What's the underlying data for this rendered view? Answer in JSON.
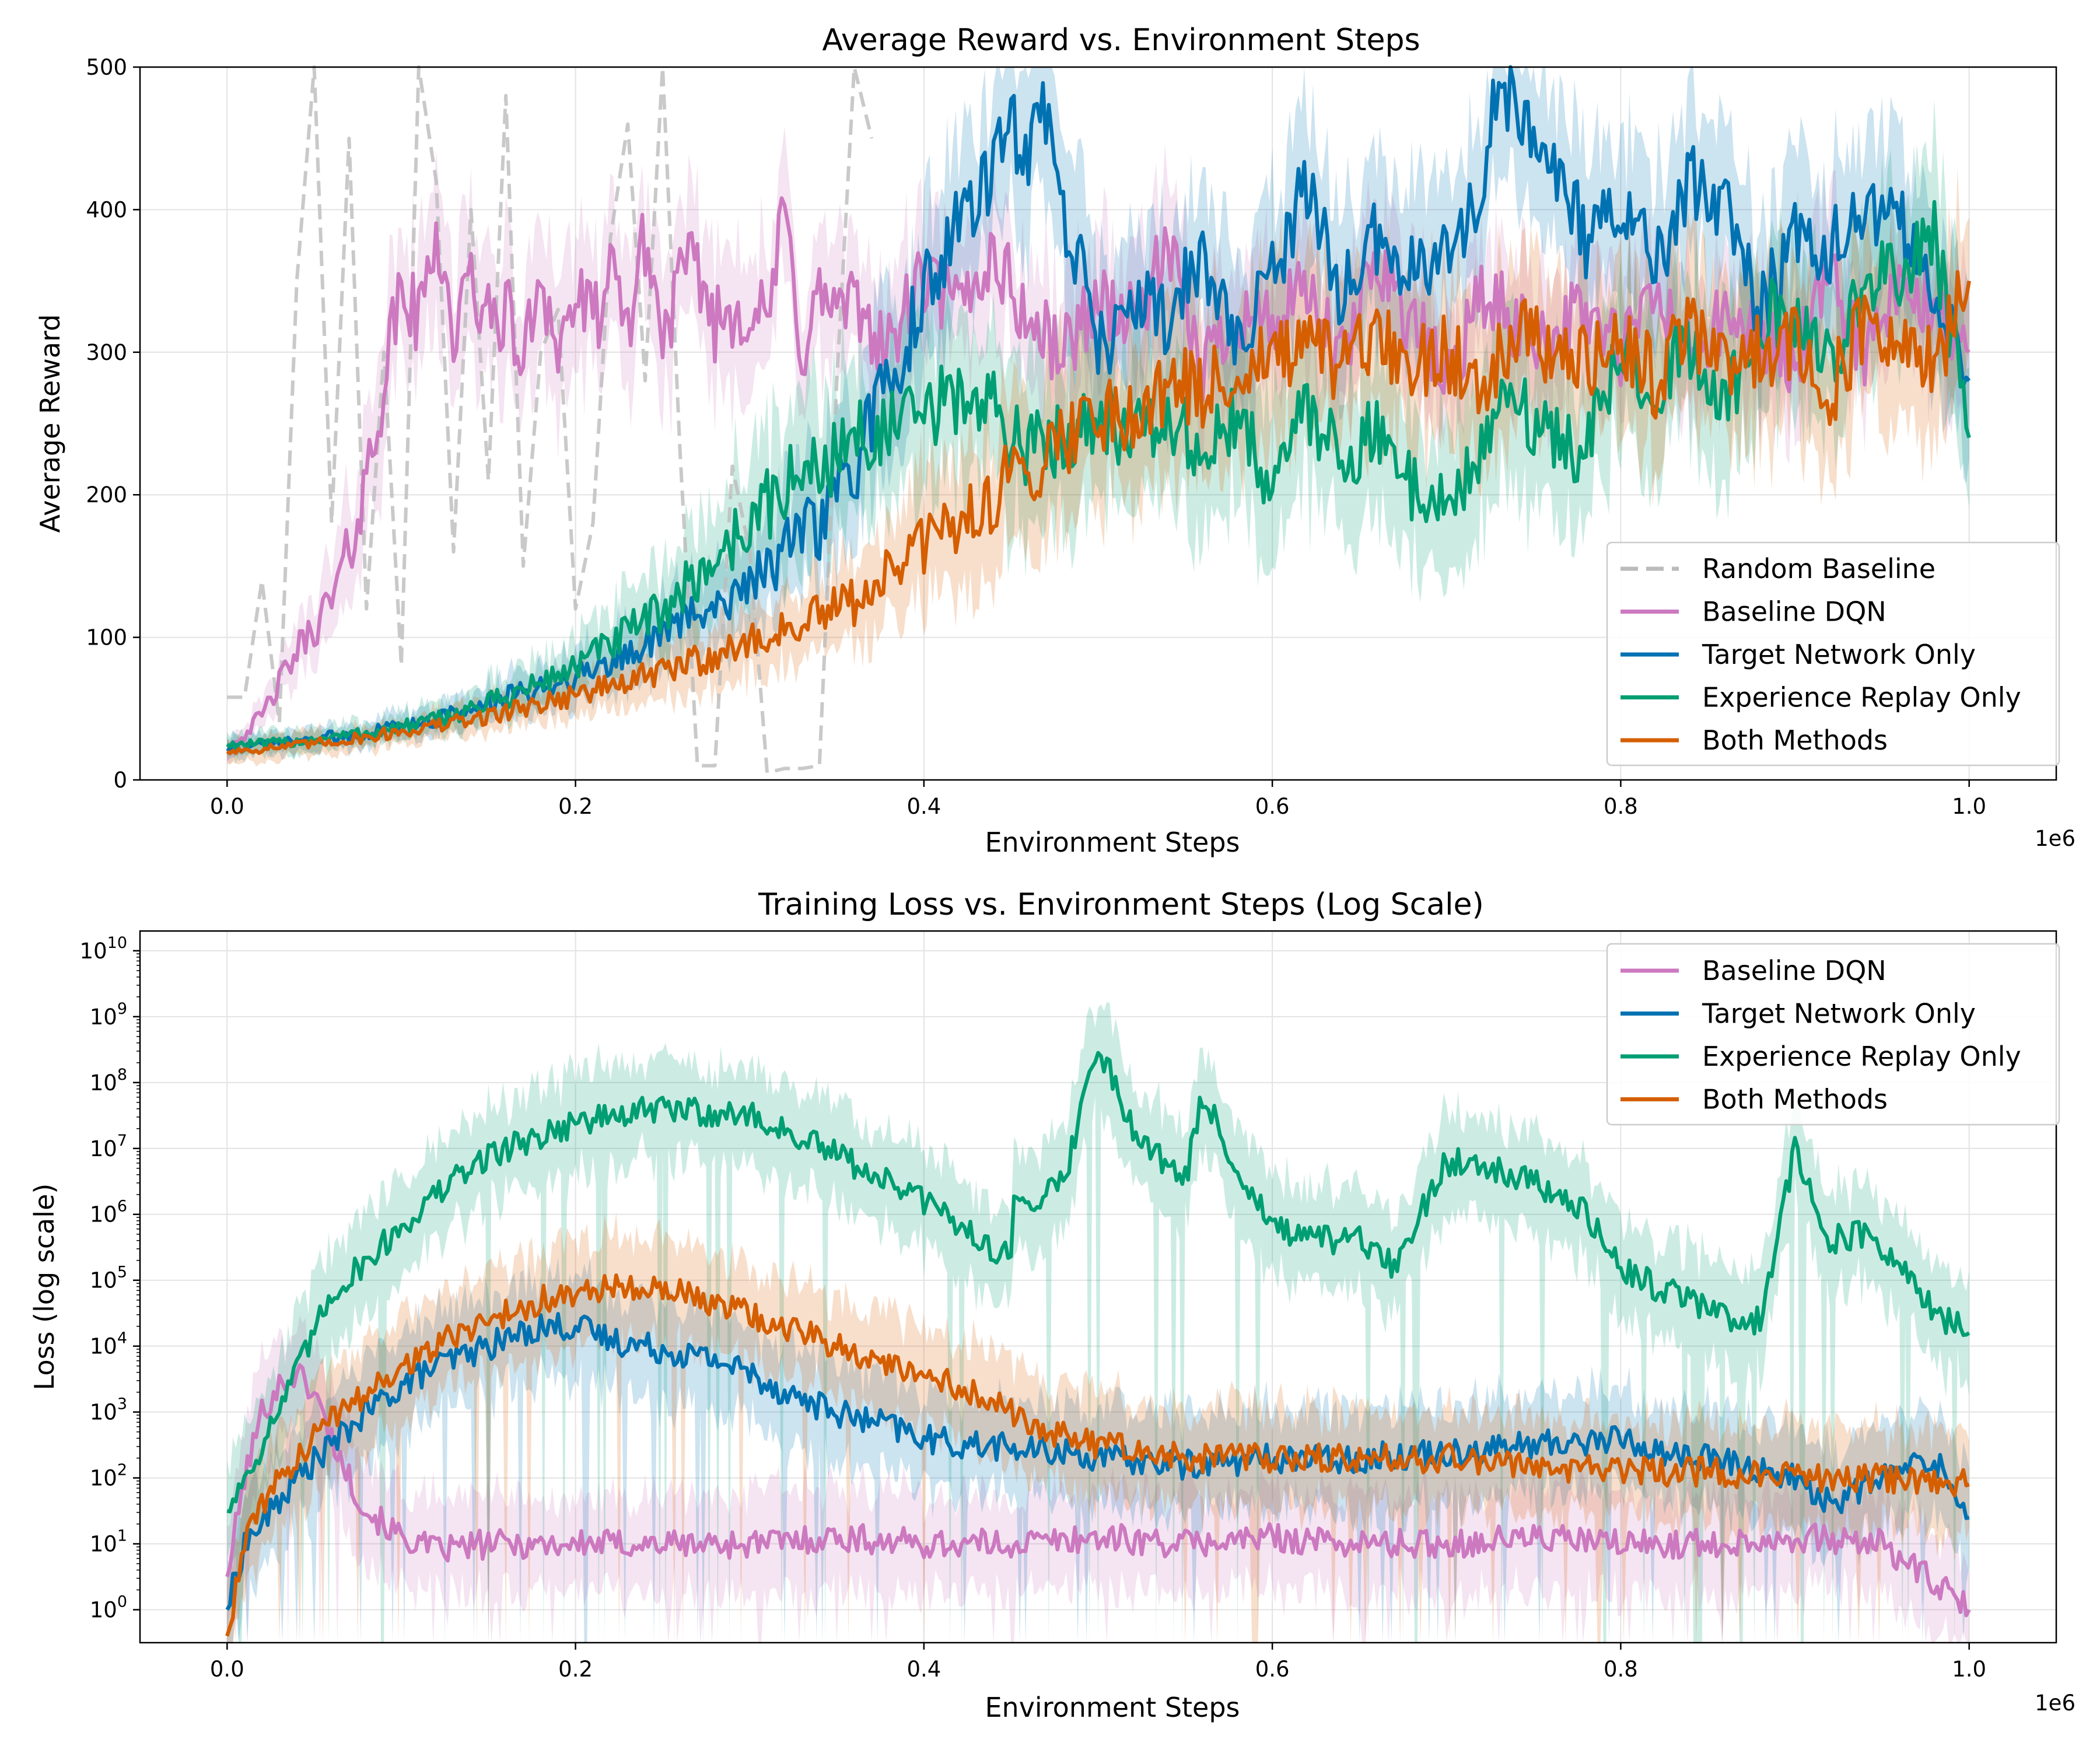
{
  "colors": {
    "random": "#bbbbbb",
    "baseline": "#cc79c0",
    "target": "#0072b2",
    "replay": "#009e73",
    "both": "#d55e00"
  },
  "chart_data": [
    {
      "type": "line",
      "title": "Average Reward vs. Environment Steps",
      "xlabel": "Environment Steps",
      "ylabel": "Average Reward",
      "x_offset_label": "1e6",
      "xlim": [
        -0.05,
        1.05
      ],
      "ylim": [
        0,
        500
      ],
      "xticks": [
        "0.0",
        "0.2",
        "0.4",
        "0.6",
        "0.8",
        "1.0"
      ],
      "xtick_values": [
        0.0,
        0.2,
        0.4,
        0.6,
        0.8,
        1.0
      ],
      "yticks": [
        "0",
        "100",
        "200",
        "300",
        "400",
        "500"
      ],
      "ytick_values": [
        0,
        100,
        200,
        300,
        400,
        500
      ],
      "grid": true,
      "legend_position": "lower-right",
      "series": [
        {
          "name": "Random Baseline",
          "color_key": "random",
          "dashed": true,
          "band": 0,
          "x": [
            0.0,
            0.01,
            0.02,
            0.03,
            0.04,
            0.05,
            0.06,
            0.07,
            0.08,
            0.09,
            0.1,
            0.11,
            0.12,
            0.13,
            0.14,
            0.15,
            0.16,
            0.17,
            0.18,
            0.19,
            0.2,
            0.21,
            0.22,
            0.23,
            0.24,
            0.25,
            0.26,
            0.27,
            0.28,
            0.29,
            0.3,
            0.31,
            0.32,
            0.33,
            0.34,
            0.35,
            0.36,
            0.37
          ],
          "y": [
            58,
            58,
            140,
            40,
            350,
            500,
            180,
            450,
            120,
            300,
            80,
            500,
            420,
            160,
            400,
            210,
            480,
            150,
            300,
            330,
            120,
            180,
            380,
            460,
            280,
            500,
            230,
            10,
            10,
            220,
            160,
            5,
            8,
            8,
            10,
            280,
            500,
            450
          ]
        },
        {
          "name": "Baseline DQN",
          "color_key": "baseline",
          "band": 45,
          "x": [
            0.0,
            0.02,
            0.04,
            0.06,
            0.07,
            0.08,
            0.09,
            0.1,
            0.11,
            0.12,
            0.13,
            0.14,
            0.15,
            0.16,
            0.17,
            0.18,
            0.19,
            0.2,
            0.21,
            0.22,
            0.23,
            0.24,
            0.25,
            0.26,
            0.27,
            0.28,
            0.29,
            0.3,
            0.31,
            0.32,
            0.33,
            0.34,
            0.35,
            0.36,
            0.37,
            0.38,
            0.39,
            0.4,
            0.42,
            0.44,
            0.46,
            0.48,
            0.5,
            0.52,
            0.54,
            0.56,
            0.58,
            0.6,
            0.62,
            0.64,
            0.66,
            0.68,
            0.7,
            0.72,
            0.74,
            0.76,
            0.78,
            0.8,
            0.82,
            0.84,
            0.86,
            0.88,
            0.9,
            0.92,
            0.94,
            0.96,
            0.98,
            1.0
          ],
          "y": [
            20,
            45,
            90,
            125,
            160,
            210,
            280,
            345,
            320,
            390,
            310,
            350,
            320,
            330,
            290,
            360,
            300,
            340,
            320,
            350,
            320,
            380,
            310,
            350,
            360,
            320,
            330,
            330,
            320,
            400,
            300,
            340,
            330,
            330,
            320,
            300,
            330,
            350,
            330,
            370,
            320,
            300,
            340,
            320,
            370,
            290,
            330,
            320,
            340,
            290,
            370,
            320,
            280,
            340,
            320,
            310,
            330,
            300,
            340,
            300,
            320,
            310,
            290,
            350,
            300,
            340,
            330,
            300
          ]
        },
        {
          "name": "Target Network Only",
          "color_key": "target",
          "band": 55,
          "x": [
            0.0,
            0.02,
            0.04,
            0.06,
            0.08,
            0.1,
            0.12,
            0.14,
            0.16,
            0.18,
            0.2,
            0.22,
            0.24,
            0.26,
            0.28,
            0.3,
            0.32,
            0.34,
            0.36,
            0.37,
            0.38,
            0.4,
            0.42,
            0.44,
            0.45,
            0.46,
            0.47,
            0.48,
            0.49,
            0.5,
            0.52,
            0.54,
            0.56,
            0.58,
            0.6,
            0.62,
            0.64,
            0.66,
            0.68,
            0.7,
            0.72,
            0.73,
            0.74,
            0.76,
            0.78,
            0.8,
            0.82,
            0.84,
            0.86,
            0.88,
            0.9,
            0.92,
            0.94,
            0.96,
            0.98,
            1.0
          ],
          "y": [
            22,
            24,
            27,
            30,
            33,
            38,
            43,
            50,
            57,
            65,
            73,
            83,
            95,
            110,
            125,
            140,
            160,
            180,
            215,
            255,
            275,
            340,
            390,
            430,
            460,
            440,
            470,
            400,
            360,
            300,
            340,
            320,
            370,
            300,
            350,
            420,
            340,
            380,
            360,
            370,
            410,
            490,
            470,
            430,
            380,
            400,
            360,
            420,
            400,
            330,
            380,
            370,
            400,
            390,
            340,
            280
          ]
        },
        {
          "name": "Experience Replay Only",
          "color_key": "replay",
          "band": 55,
          "x": [
            0.0,
            0.02,
            0.04,
            0.06,
            0.08,
            0.1,
            0.12,
            0.14,
            0.16,
            0.18,
            0.2,
            0.22,
            0.24,
            0.26,
            0.28,
            0.3,
            0.32,
            0.34,
            0.36,
            0.38,
            0.4,
            0.42,
            0.44,
            0.46,
            0.48,
            0.5,
            0.52,
            0.54,
            0.56,
            0.58,
            0.6,
            0.62,
            0.64,
            0.66,
            0.68,
            0.7,
            0.72,
            0.74,
            0.76,
            0.78,
            0.8,
            0.82,
            0.84,
            0.86,
            0.88,
            0.9,
            0.92,
            0.94,
            0.96,
            0.98,
            1.0
          ],
          "y": [
            25,
            25,
            27,
            30,
            33,
            37,
            42,
            50,
            58,
            68,
            80,
            95,
            110,
            130,
            155,
            180,
            205,
            220,
            240,
            245,
            255,
            270,
            260,
            230,
            240,
            260,
            240,
            250,
            230,
            250,
            210,
            260,
            230,
            240,
            210,
            190,
            230,
            270,
            240,
            230,
            300,
            280,
            300,
            260,
            330,
            310,
            300,
            340,
            360,
            380,
            240
          ]
        },
        {
          "name": "Both Methods",
          "color_key": "both",
          "band": 55,
          "x": [
            0.0,
            0.02,
            0.04,
            0.06,
            0.08,
            0.1,
            0.12,
            0.14,
            0.16,
            0.18,
            0.2,
            0.22,
            0.24,
            0.26,
            0.28,
            0.3,
            0.32,
            0.34,
            0.36,
            0.38,
            0.4,
            0.42,
            0.44,
            0.46,
            0.48,
            0.5,
            0.52,
            0.54,
            0.56,
            0.58,
            0.6,
            0.62,
            0.64,
            0.66,
            0.68,
            0.7,
            0.72,
            0.74,
            0.76,
            0.78,
            0.8,
            0.82,
            0.84,
            0.86,
            0.88,
            0.9,
            0.92,
            0.94,
            0.96,
            0.98,
            1.0
          ],
          "y": [
            20,
            22,
            24,
            27,
            30,
            34,
            38,
            42,
            48,
            54,
            60,
            66,
            72,
            80,
            88,
            96,
            105,
            115,
            125,
            145,
            165,
            180,
            200,
            220,
            240,
            260,
            255,
            280,
            270,
            290,
            295,
            300,
            290,
            310,
            290,
            300,
            280,
            320,
            300,
            290,
            310,
            280,
            320,
            290,
            300,
            310,
            270,
            320,
            300,
            290,
            350
          ]
        }
      ],
      "legend_entries": [
        "Random Baseline",
        "Baseline DQN",
        "Target Network Only",
        "Experience Replay Only",
        "Both Methods"
      ]
    },
    {
      "type": "line",
      "title": "Training Loss vs. Environment Steps (Log Scale)",
      "xlabel": "Environment Steps",
      "ylabel": "Loss (log scale)",
      "x_offset_label": "1e6",
      "y_scale": "log",
      "xlim": [
        -0.05,
        1.05
      ],
      "ylim_log10": [
        -0.5,
        10.3
      ],
      "xticks": [
        "0.0",
        "0.2",
        "0.4",
        "0.6",
        "0.8",
        "1.0"
      ],
      "xtick_values": [
        0.0,
        0.2,
        0.4,
        0.6,
        0.8,
        1.0
      ],
      "ytick_base": "10",
      "ytick_exponents": [
        "0",
        "1",
        "2",
        "3",
        "4",
        "5",
        "6",
        "7",
        "8",
        "9",
        "10"
      ],
      "grid": true,
      "legend_position": "upper-right",
      "series": [
        {
          "name": "Baseline DQN",
          "color_key": "baseline",
          "x": [
            0.0,
            0.01,
            0.02,
            0.03,
            0.04,
            0.05,
            0.06,
            0.07,
            0.08,
            0.1,
            0.12,
            0.15,
            0.2,
            0.25,
            0.3,
            0.35,
            0.4,
            0.45,
            0.5,
            0.55,
            0.6,
            0.65,
            0.7,
            0.75,
            0.8,
            0.85,
            0.9,
            0.95,
            1.0
          ],
          "log10_y": [
            0.5,
            2.0,
            3.0,
            3.4,
            3.6,
            3.3,
            2.6,
            2.0,
            1.5,
            1.1,
            0.9,
            1.0,
            1.0,
            1.0,
            1.0,
            1.1,
            1.0,
            1.0,
            1.1,
            1.0,
            1.1,
            1.0,
            1.0,
            1.1,
            1.0,
            1.0,
            1.1,
            1.0,
            0.0
          ]
        },
        {
          "name": "Target Network Only",
          "color_key": "target",
          "x": [
            0.0,
            0.01,
            0.02,
            0.04,
            0.06,
            0.08,
            0.1,
            0.12,
            0.14,
            0.16,
            0.18,
            0.2,
            0.22,
            0.24,
            0.26,
            0.28,
            0.3,
            0.32,
            0.34,
            0.36,
            0.38,
            0.4,
            0.42,
            0.44,
            0.46,
            0.48,
            0.5,
            0.55,
            0.6,
            0.65,
            0.7,
            0.75,
            0.8,
            0.82,
            0.85,
            0.9,
            0.92,
            0.95,
            0.98,
            1.0
          ],
          "log10_y": [
            0.0,
            1.0,
            1.3,
            2.0,
            2.5,
            3.0,
            3.4,
            3.7,
            3.9,
            4.1,
            4.3,
            4.3,
            4.1,
            4.0,
            3.9,
            3.8,
            3.6,
            3.3,
            3.1,
            2.9,
            2.8,
            2.6,
            2.5,
            2.5,
            2.4,
            2.4,
            2.3,
            2.2,
            2.3,
            2.3,
            2.4,
            2.5,
            2.6,
            2.4,
            2.3,
            2.0,
            1.6,
            2.0,
            2.3,
            1.4
          ]
        },
        {
          "name": "Experience Replay Only",
          "color_key": "replay",
          "x": [
            0.0,
            0.02,
            0.04,
            0.06,
            0.08,
            0.1,
            0.12,
            0.15,
            0.2,
            0.25,
            0.3,
            0.35,
            0.4,
            0.45,
            0.451,
            0.48,
            0.5,
            0.52,
            0.55,
            0.56,
            0.58,
            0.6,
            0.62,
            0.65,
            0.67,
            0.7,
            0.72,
            0.75,
            0.78,
            0.8,
            0.82,
            0.85,
            0.87,
            0.88,
            0.9,
            0.92,
            0.94,
            0.96,
            0.98,
            1.0
          ],
          "log10_y": [
            1.5,
            2.5,
            3.6,
            4.8,
            5.3,
            5.8,
            6.3,
            6.9,
            7.4,
            7.6,
            7.5,
            6.9,
            6.2,
            5.3,
            6.1,
            6.5,
            8.6,
            7.3,
            6.5,
            7.8,
            6.7,
            5.8,
            5.6,
            5.6,
            5.2,
            6.8,
            6.8,
            6.5,
            6.0,
            5.2,
            4.9,
            4.6,
            4.3,
            4.4,
            7.0,
            5.6,
            5.7,
            5.2,
            4.5,
            4.2
          ]
        },
        {
          "name": "Both Methods",
          "color_key": "both",
          "x": [
            0.0,
            0.01,
            0.02,
            0.04,
            0.06,
            0.08,
            0.1,
            0.12,
            0.14,
            0.16,
            0.18,
            0.2,
            0.22,
            0.24,
            0.26,
            0.28,
            0.3,
            0.32,
            0.34,
            0.36,
            0.38,
            0.4,
            0.42,
            0.44,
            0.46,
            0.5,
            0.55,
            0.6,
            0.65,
            0.7,
            0.75,
            0.8,
            0.85,
            0.9,
            0.95,
            1.0
          ],
          "log10_y": [
            -0.4,
            1.0,
            1.6,
            2.3,
            2.9,
            3.3,
            3.7,
            4.0,
            4.3,
            4.5,
            4.7,
            4.8,
            4.9,
            4.95,
            4.8,
            4.6,
            4.5,
            4.3,
            4.1,
            3.9,
            3.7,
            3.5,
            3.4,
            3.2,
            2.8,
            2.5,
            2.3,
            2.3,
            2.3,
            2.3,
            2.2,
            2.1,
            2.1,
            2.0,
            2.0,
            1.9
          ]
        }
      ],
      "legend_entries": [
        "Baseline DQN",
        "Target Network Only",
        "Experience Replay Only",
        "Both Methods"
      ]
    }
  ]
}
